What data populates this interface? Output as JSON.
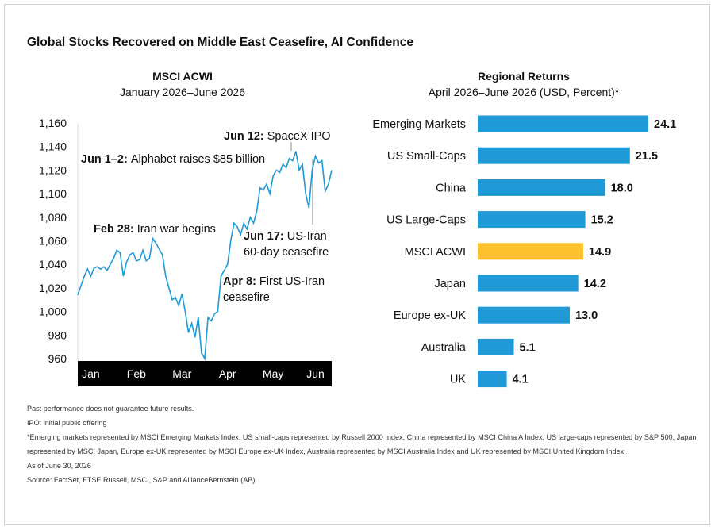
{
  "title": "Global Stocks Recovered on Middle East Ceasefire, AI Confidence",
  "chart_data": [
    {
      "type": "line",
      "title": "MSCI ACWI",
      "subtitle": "January 2026–June 2026",
      "categories": [
        null,
        null,
        null,
        null,
        "Jan",
        null,
        null,
        null,
        null,
        null,
        null,
        null,
        null,
        null,
        null,
        null,
        null,
        null,
        "Feb",
        null,
        null,
        null,
        null,
        null,
        null,
        null,
        null,
        null,
        null,
        null,
        null,
        null,
        "Mar",
        null,
        null,
        null,
        null,
        null,
        null,
        null,
        null,
        null,
        null,
        null,
        null,
        null,
        "Apr",
        null,
        null,
        null,
        null,
        null,
        null,
        null,
        null,
        null,
        null,
        null,
        null,
        null,
        "May",
        null,
        null,
        null,
        null,
        null,
        null,
        null,
        null,
        null,
        null,
        null,
        null,
        "Jun",
        null,
        null,
        null,
        null,
        null
      ],
      "values": [
        1014,
        1022,
        1030,
        1036,
        1030,
        1037,
        1038,
        1036,
        1038,
        1035,
        1040,
        1045,
        1052,
        1050,
        1030,
        1042,
        1048,
        1050,
        1043,
        1044,
        1052,
        1043,
        1045,
        1062,
        1058,
        1053,
        1048,
        1030,
        1020,
        1010,
        1012,
        1005,
        1015,
        1000,
        982,
        990,
        978,
        995,
        965,
        960,
        995,
        992,
        998,
        1000,
        1030,
        1035,
        1040,
        1060,
        1075,
        1072,
        1065,
        1075,
        1070,
        1080,
        1075,
        1085,
        1105,
        1103,
        1108,
        1100,
        1115,
        1120,
        1118,
        1125,
        1122,
        1130,
        1128,
        1136,
        1120,
        1125,
        1100,
        1088,
        1120,
        1132,
        1126,
        1128,
        1102,
        1108,
        1120
      ],
      "color": "#1f9ad6",
      "ylim": [
        960,
        1160
      ],
      "yticks": [
        {
          "value": 960,
          "label": "960"
        },
        {
          "value": 980,
          "label": "980"
        },
        {
          "value": 1000,
          "label": "1,000"
        },
        {
          "value": 1020,
          "label": "1,020"
        },
        {
          "value": 1040,
          "label": "1,040"
        },
        {
          "value": 1060,
          "label": "1,060"
        },
        {
          "value": 1080,
          "label": "1,080"
        },
        {
          "value": 1100,
          "label": "1,100"
        },
        {
          "value": 1120,
          "label": "1,120"
        },
        {
          "value": 1140,
          "label": "1,140"
        },
        {
          "value": 1160,
          "label": "1,160"
        }
      ],
      "annotations": [
        {
          "date": "Jun 12:",
          "text": [
            "SpaceX IPO"
          ]
        },
        {
          "date": "Jun 1–2:",
          "text": [
            "Alphabet raises $85 billion"
          ]
        },
        {
          "date": "Feb 28:",
          "text": [
            "Iran war begins"
          ]
        },
        {
          "date": "Jun 17:",
          "text": [
            "US-Iran",
            "60-day ceasefire"
          ]
        },
        {
          "date": "Apr 8:",
          "text": [
            "First US-Iran",
            "ceasefire"
          ]
        }
      ]
    },
    {
      "type": "hbar",
      "title": "Regional Returns",
      "subtitle": "April 2026–June 2026 (USD, Percent)*",
      "categories": [
        "Emerging Markets",
        "US Small-Caps",
        "China",
        "US Large-Caps",
        "MSCI ACWI",
        "Japan",
        "Europe ex-UK",
        "Australia",
        "UK"
      ],
      "values": [
        24.1,
        21.5,
        18.0,
        15.2,
        14.9,
        14.2,
        13.0,
        5.1,
        4.1
      ],
      "value_labels": [
        "24.1",
        "21.5",
        "18.0",
        "15.2",
        "14.9",
        "14.2",
        "13.0",
        "5.1",
        "4.1"
      ],
      "colors": [
        "#1f9ad6",
        "#1f9ad6",
        "#1f9ad6",
        "#1f9ad6",
        "#fcc12d",
        "#1f9ad6",
        "#1f9ad6",
        "#1f9ad6",
        "#1f9ad6"
      ]
    }
  ],
  "footnotes": [
    "Past performance does not guarantee future results.",
    "IPO: initial public offering",
    "*Emerging markets represented by MSCI Emerging Markets Index, US small-caps represented by Russell 2000 Index, China represented by MSCI China A Index, US large-caps represented by S&P 500, Japan represented by MSCI Japan, Europe ex-UK represented by MSCI Europe ex-UK Index, Australia represented by MSCI Australia Index and UK represented by MSCI United Kingdom Index.",
    "As of June 30, 2026",
    "Source: FactSet, FTSE Russell, MSCI, S&P and AllianceBernstein (AB)"
  ]
}
